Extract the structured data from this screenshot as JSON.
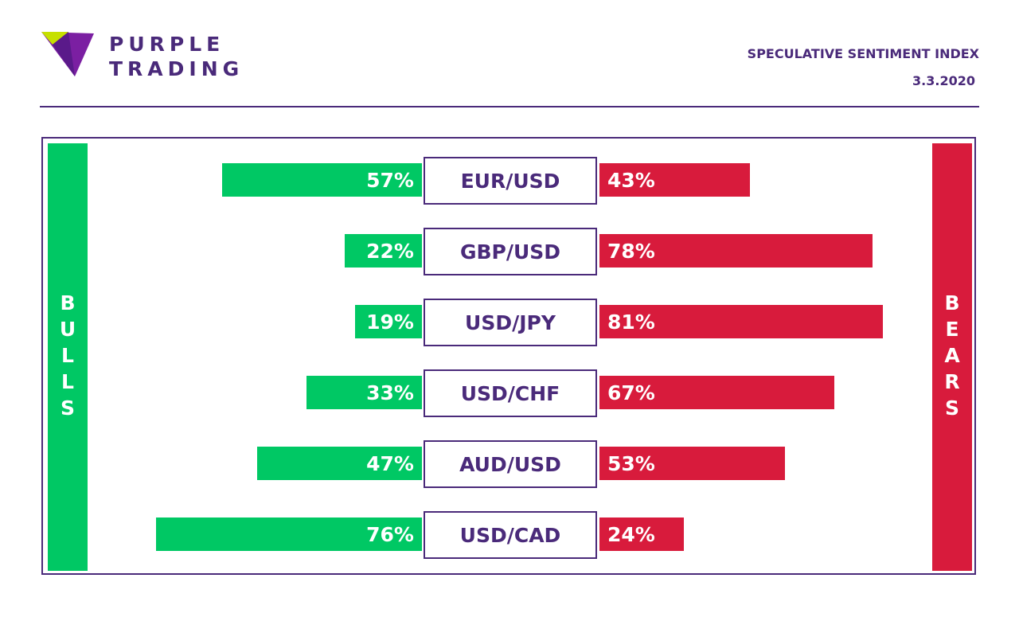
{
  "brand": {
    "line1": "PURPLE",
    "line2": "TRADING",
    "colors": {
      "purple": "#4a2a7a",
      "logo_violet": "#7b1fa2",
      "logo_lime": "#c6e000"
    }
  },
  "header": {
    "title": "SPECULATIVE SENTIMENT INDEX",
    "date": "3.3.2020"
  },
  "side_labels": {
    "bulls": "BULLS",
    "bears": "BEARS"
  },
  "chart_data": {
    "type": "bar",
    "categories": [
      "EUR/USD",
      "GBP/USD",
      "USD/JPY",
      "USD/CHF",
      "AUD/USD",
      "USD/CAD"
    ],
    "series": [
      {
        "name": "BULLS",
        "values": [
          57,
          22,
          19,
          33,
          47,
          76
        ],
        "labels": [
          "57%",
          "22%",
          "19%",
          "33%",
          "47%",
          "76%"
        ],
        "color": "#00c864"
      },
      {
        "name": "BEARS",
        "values": [
          43,
          78,
          81,
          67,
          53,
          24
        ],
        "labels": [
          "43%",
          "78%",
          "81%",
          "67%",
          "53%",
          "24%"
        ],
        "color": "#d81b3c"
      }
    ],
    "unit": "%",
    "ylim": [
      0,
      100
    ]
  }
}
